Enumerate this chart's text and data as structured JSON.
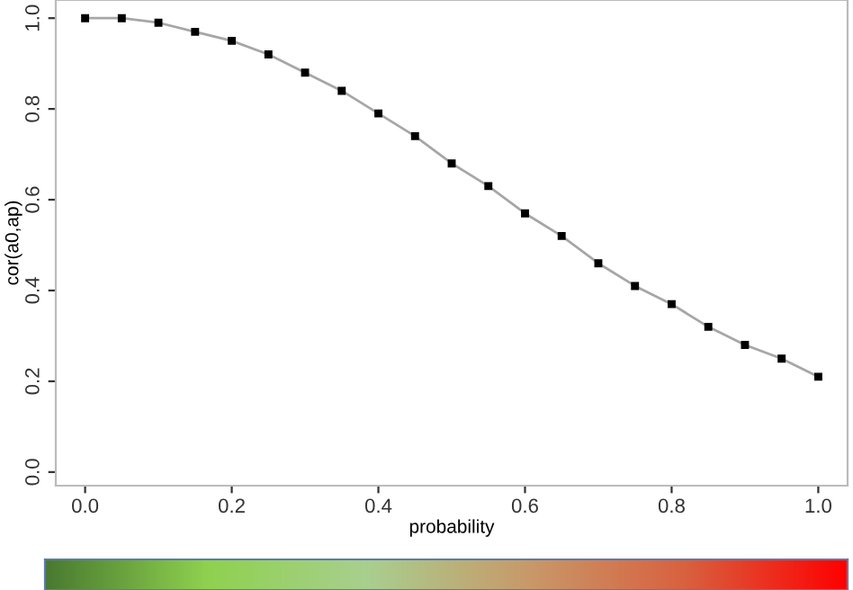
{
  "chart_data": {
    "type": "line",
    "xlabel": "probability",
    "ylabel": "cor(a0,ap)",
    "x": [
      0.0,
      0.05,
      0.1,
      0.15,
      0.2,
      0.25,
      0.3,
      0.35,
      0.4,
      0.45,
      0.5,
      0.55,
      0.6,
      0.65,
      0.7,
      0.75,
      0.8,
      0.85,
      0.9,
      0.95,
      1.0
    ],
    "series": [
      {
        "color": "#000000",
        "values": [
          1.0,
          1.0,
          0.99,
          0.97,
          0.95,
          0.92,
          0.88,
          0.84,
          0.79,
          0.74,
          0.68,
          0.63,
          0.57,
          0.52,
          0.46,
          0.41,
          0.37,
          0.32,
          0.28,
          0.25,
          0.21
        ]
      }
    ],
    "xlim": [
      -0.04,
      1.04
    ],
    "ylim": [
      -0.03,
      1.04
    ],
    "xticks": [
      {
        "value": 0.0,
        "label": "0.0"
      },
      0.2,
      0.4,
      0.6,
      0.8,
      {
        "value": 1.0,
        "label": "1.0"
      }
    ],
    "yticks": [
      {
        "value": 0.0,
        "label": "0.0"
      },
      0.2,
      0.4,
      0.6,
      0.8,
      {
        "value": 1.0,
        "label": "1.0"
      }
    ],
    "marker": "square",
    "line_style": "solid",
    "grid": false,
    "legend": false
  }
}
